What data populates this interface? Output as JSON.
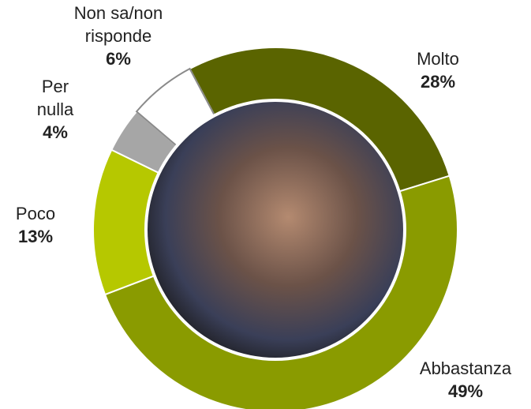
{
  "chart_data": {
    "type": "donut",
    "categories": [
      "Molto",
      "Abbastanza",
      "Poco",
      "Per nulla",
      "Non sa/non risponde"
    ],
    "values": [
      28,
      49,
      13,
      4,
      6
    ],
    "value_labels": [
      "28%",
      "49%",
      "13%",
      "4%",
      "6%"
    ],
    "colors": [
      "#5a6400",
      "#8a9b00",
      "#b6c800",
      "#a6a6a6",
      "#ffffff"
    ]
  }
}
